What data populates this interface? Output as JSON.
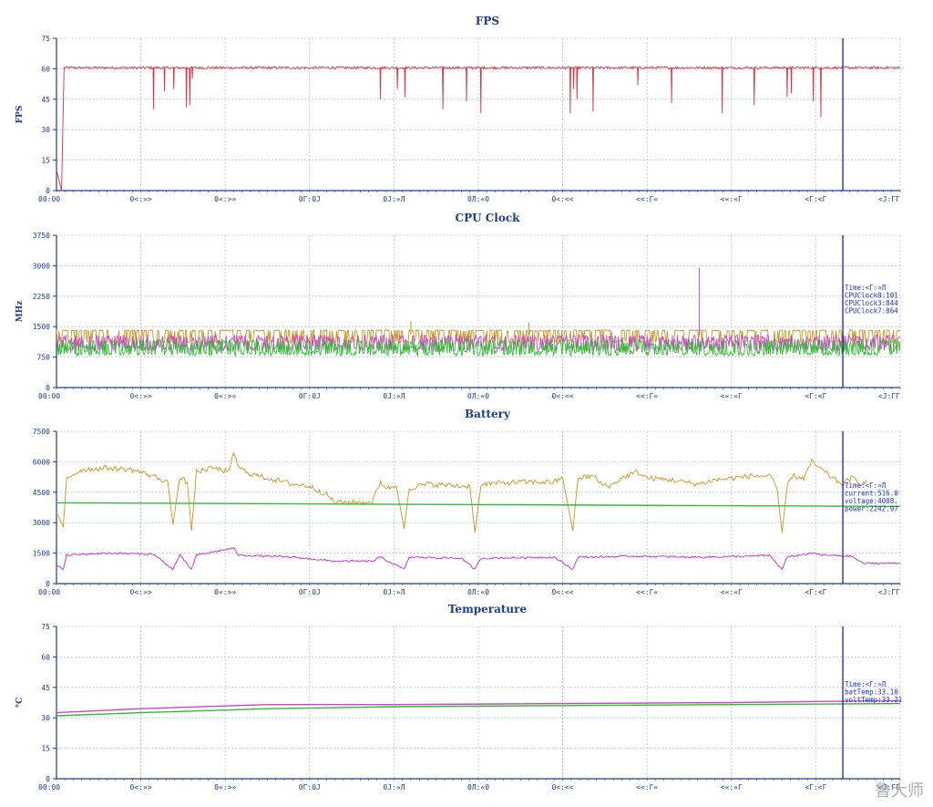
{
  "chart_data": [
    {
      "type": "line",
      "title": "FPS",
      "ylabel": "FPS",
      "ylim": [
        0,
        75
      ],
      "yticks": [
        "0",
        "15",
        "30",
        "45",
        "60",
        "75"
      ],
      "xticks": [
        "00:00",
        "0<:»>",
        "0«:>»",
        "0Γ:0J",
        "0J:»Л",
        "0Л:«0",
        "0<:<<",
        "<<:Γ«",
        "<«:«Γ",
        "<Γ:<Γ",
        "<J:ΓΓ"
      ],
      "cursor": 0.932,
      "series": [
        {
          "color": "#e0303c",
          "base": 60.5,
          "noise": 0.6,
          "start": [
            [
              0,
              10
            ],
            [
              0.6,
              0
            ],
            [
              0.9,
              60
            ]
          ],
          "dips": [
            [
              11.5,
              40
            ],
            [
              12.8,
              49
            ],
            [
              13.9,
              50
            ],
            [
              15.4,
              41
            ],
            [
              15.8,
              42
            ],
            [
              16.1,
              55
            ],
            [
              38.4,
              45
            ],
            [
              40.4,
              50
            ],
            [
              41.3,
              46
            ],
            [
              45.8,
              40
            ],
            [
              48.6,
              44
            ],
            [
              50.3,
              38
            ],
            [
              60.9,
              38
            ],
            [
              61.3,
              50
            ],
            [
              61.7,
              45
            ],
            [
              63.6,
              39
            ],
            [
              68.9,
              52
            ],
            [
              72.9,
              43
            ],
            [
              78.9,
              38
            ],
            [
              82.7,
              42
            ],
            [
              86.6,
              46
            ],
            [
              87.1,
              48
            ],
            [
              89.7,
              44
            ],
            [
              90.6,
              36
            ]
          ]
        }
      ]
    },
    {
      "type": "line",
      "title": "CPU Clock",
      "ylabel": "MHz",
      "ylim": [
        0,
        3750
      ],
      "yticks": [
        "0",
        "750",
        "1500",
        "2250",
        "3000",
        "3750"
      ],
      "xticks": [
        "00:00",
        "0<:»>",
        "0«:>»",
        "0Γ:0J",
        "0J:»Л",
        "0Л:«0",
        "0<:<<",
        "<<:Γ«",
        "<«:«Γ",
        "<Γ:<Γ",
        "<J:ΓΓ"
      ],
      "cursor": 0.932,
      "tooltip": [
        "Time:<Γ:»Л",
        "CPUClock0:101",
        "CPUClock3:844",
        "CPUClock7:864"
      ],
      "series": [
        {
          "color": "#c8961e",
          "pattern": "square",
          "low": 1100,
          "high": 1420,
          "spike": [
            [
              56,
              1600
            ],
            [
              42,
              1640
            ]
          ]
        },
        {
          "color": "#cc44cc",
          "pattern": "noise",
          "low": 900,
          "high": 1300,
          "spike": [
            [
              76.2,
              2950
            ]
          ]
        },
        {
          "color": "#2ebd2e",
          "pattern": "noise",
          "low": 780,
          "high": 1180
        }
      ]
    },
    {
      "type": "line",
      "title": "Battery",
      "ylabel": "",
      "ylim": [
        0,
        7500
      ],
      "yticks": [
        "0",
        "1500",
        "3000",
        "4500",
        "6000",
        "7500"
      ],
      "xticks": [
        "00:00",
        "0<:»>",
        "0«:>»",
        "0Γ:0J",
        "0J:»Л",
        "0Л:«0",
        "0<:<<",
        "<<:Γ«",
        "<«:«Γ",
        "<Γ:<Γ",
        "<J:ΓΓ"
      ],
      "cursor": 0.932,
      "tooltip": [
        "Time:<Γ:»Л",
        "current:516.0",
        "voltage:4008.",
        "power:2242.97"
      ],
      "series": [
        {
          "color": "#c8961e",
          "pattern": "battery",
          "points": [
            [
              0,
              3400
            ],
            [
              0.8,
              2800
            ],
            [
              1.2,
              5200
            ],
            [
              3,
              5600
            ],
            [
              6,
              5700
            ],
            [
              9,
              5600
            ],
            [
              11.5,
              5300
            ],
            [
              13.2,
              5000
            ],
            [
              13.8,
              2900
            ],
            [
              14.6,
              5200
            ],
            [
              15.5,
              5000
            ],
            [
              16,
              2600
            ],
            [
              16.6,
              5500
            ],
            [
              18.5,
              5700
            ],
            [
              20.5,
              5500
            ],
            [
              21,
              6500
            ],
            [
              21.6,
              5700
            ],
            [
              23,
              5400
            ],
            [
              25,
              5200
            ],
            [
              28,
              4900
            ],
            [
              30,
              4800
            ],
            [
              32,
              4400
            ],
            [
              33,
              4000
            ],
            [
              35,
              4000
            ],
            [
              37.4,
              4000
            ],
            [
              38.4,
              5000
            ],
            [
              39.2,
              4700
            ],
            [
              40.3,
              4800
            ],
            [
              41.2,
              2700
            ],
            [
              41.8,
              4700
            ],
            [
              44,
              4900
            ],
            [
              48,
              4800
            ],
            [
              49,
              4800
            ],
            [
              49.6,
              2500
            ],
            [
              50.3,
              4900
            ],
            [
              55,
              5000
            ],
            [
              59,
              5000
            ],
            [
              60,
              5200
            ],
            [
              61.2,
              2600
            ],
            [
              61.8,
              5200
            ],
            [
              63.7,
              5300
            ],
            [
              64.5,
              4900
            ],
            [
              65.7,
              4800
            ],
            [
              67,
              5200
            ],
            [
              68.8,
              5500
            ],
            [
              70,
              5200
            ],
            [
              73,
              5100
            ],
            [
              76,
              4900
            ],
            [
              78,
              5100
            ],
            [
              82.4,
              5300
            ],
            [
              84.5,
              5300
            ],
            [
              85.4,
              4700
            ],
            [
              86,
              2500
            ],
            [
              86.6,
              4800
            ],
            [
              87.2,
              5300
            ],
            [
              88.6,
              5200
            ],
            [
              89.5,
              6000
            ],
            [
              91,
              5500
            ],
            [
              92.3,
              5100
            ],
            [
              93.2,
              4900
            ],
            [
              94.2,
              5200
            ],
            [
              95.6,
              4900
            ],
            [
              96,
              5100
            ]
          ]
        },
        {
          "color": "#2ebd2e",
          "pattern": "linear",
          "from": 3980,
          "to": 3800
        },
        {
          "color": "#cc22cc",
          "pattern": "battery",
          "points": [
            [
              0,
              900
            ],
            [
              0.8,
              700
            ],
            [
              1.2,
              1400
            ],
            [
              6,
              1500
            ],
            [
              11.5,
              1450
            ],
            [
              13.8,
              700
            ],
            [
              14.6,
              1400
            ],
            [
              16,
              700
            ],
            [
              16.6,
              1400
            ],
            [
              21,
              1750
            ],
            [
              21.6,
              1400
            ],
            [
              28,
              1300
            ],
            [
              33,
              1100
            ],
            [
              37.4,
              1100
            ],
            [
              38.4,
              1300
            ],
            [
              41.2,
              700
            ],
            [
              41.8,
              1300
            ],
            [
              48,
              1250
            ],
            [
              49.6,
              700
            ],
            [
              50.3,
              1250
            ],
            [
              59,
              1300
            ],
            [
              61.2,
              700
            ],
            [
              61.8,
              1300
            ],
            [
              68.8,
              1350
            ],
            [
              76,
              1300
            ],
            [
              82.4,
              1350
            ],
            [
              84.5,
              1400
            ],
            [
              86,
              700
            ],
            [
              86.6,
              1300
            ],
            [
              89.5,
              1500
            ],
            [
              91,
              1400
            ],
            [
              94.2,
              1350
            ],
            [
              95.6,
              1000
            ],
            [
              100,
              1000
            ]
          ]
        }
      ]
    },
    {
      "type": "line",
      "title": "Temperature",
      "ylabel": "°C",
      "ylim": [
        0,
        75
      ],
      "yticks": [
        "0",
        "15",
        "30",
        "45",
        "60",
        "75"
      ],
      "xticks": [
        "00:00",
        "0<:»>",
        "0«:>»",
        "0Γ:0J",
        "0J:»Л",
        "0Л:«0",
        "0<:<<",
        "<<:Γ«",
        "<«:«Γ",
        "<Γ:<Γ",
        "<J:ΓΓ"
      ],
      "cursor": 0.932,
      "tooltip": [
        "Time:<Γ:»Л",
        "batTemp:33.10",
        "voltTemp:33.21"
      ],
      "series": [
        {
          "color": "#cc44cc",
          "pattern": "curve",
          "points": [
            [
              0,
              32.5
            ],
            [
              10,
              34.5
            ],
            [
              25,
              36.5
            ],
            [
              40,
              36.5
            ],
            [
              60,
              37
            ],
            [
              80,
              37.5
            ],
            [
              100,
              38.5
            ]
          ]
        },
        {
          "color": "#2ebd2e",
          "pattern": "curve",
          "points": [
            [
              0,
              31
            ],
            [
              10,
              32.5
            ],
            [
              25,
              34.5
            ],
            [
              40,
              35.5
            ],
            [
              60,
              36
            ],
            [
              80,
              36.5
            ],
            [
              100,
              37
            ]
          ]
        }
      ]
    }
  ],
  "watermark": "鲁大师"
}
